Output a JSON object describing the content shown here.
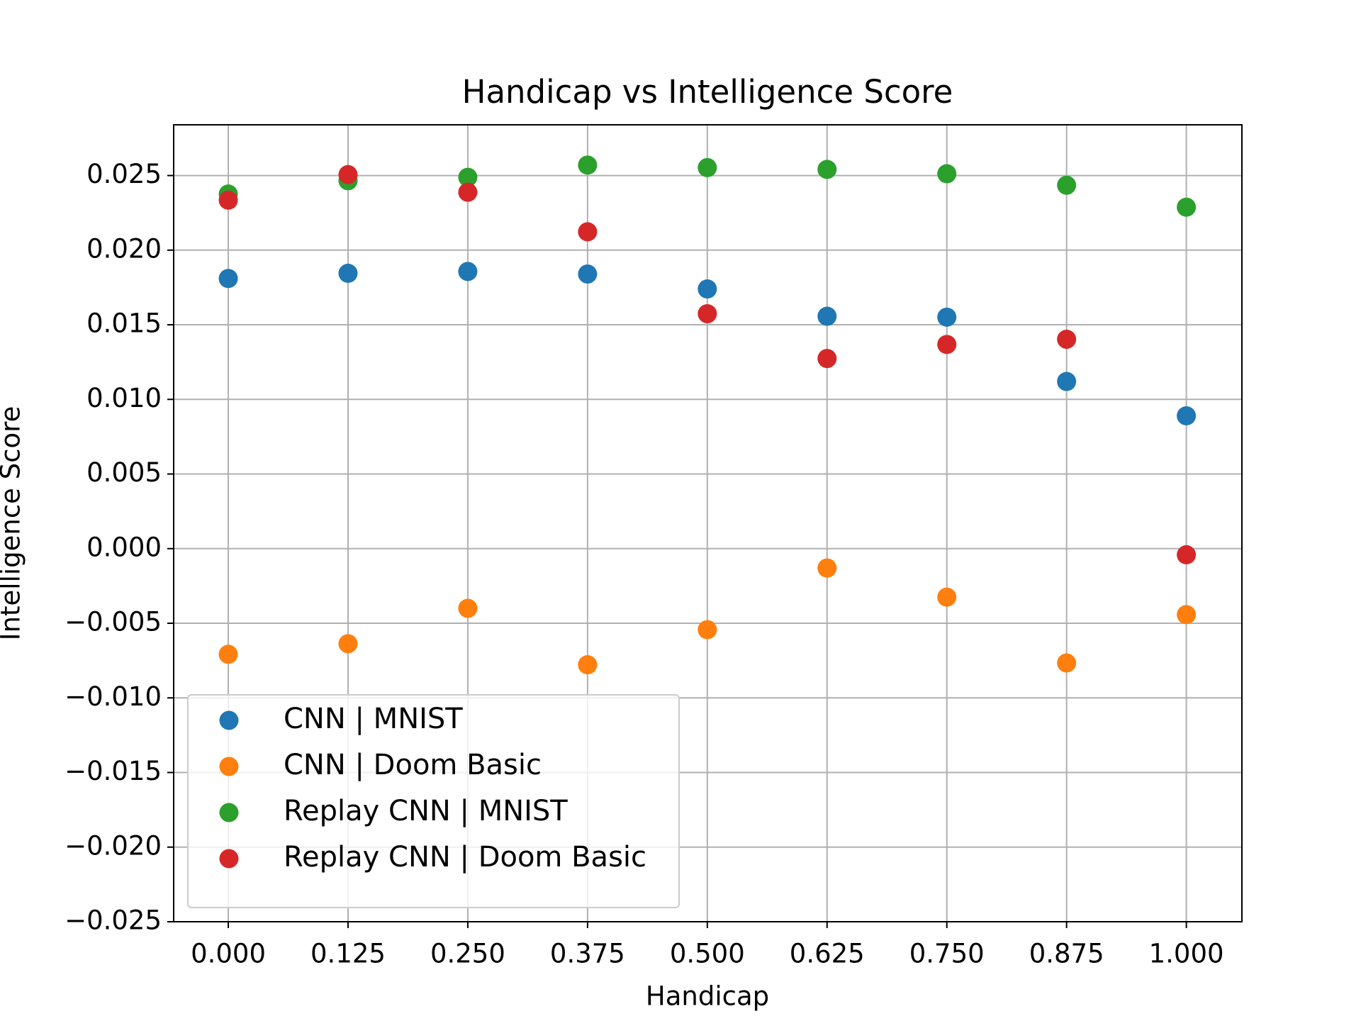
{
  "chart_data": {
    "type": "scatter",
    "title": "Handicap vs Intelligence Score",
    "xlabel": "Handicap",
    "ylabel": "Intelligence Score",
    "x": [
      0,
      0.125,
      0.25,
      0.375,
      0.5,
      0.625,
      0.75,
      0.875,
      1.0
    ],
    "series": [
      {
        "name": "CNN | MNIST",
        "color": "#1f77b4",
        "values": [
          0.0181,
          0.01845,
          0.01857,
          0.0184,
          0.0174,
          0.01557,
          0.01551,
          0.0112,
          0.0089
        ]
      },
      {
        "name": "CNN | Doom Basic",
        "color": "#ff7f0e",
        "values": [
          -0.00708,
          -0.00637,
          -0.004,
          -0.00778,
          -0.00543,
          -0.0013,
          -0.00325,
          -0.00766,
          -0.00442
        ]
      },
      {
        "name": "Replay CNN | MNIST",
        "color": "#2ca02c",
        "values": [
          0.02376,
          0.02465,
          0.02488,
          0.0257,
          0.02553,
          0.02541,
          0.02512,
          0.02435,
          0.02288
        ]
      },
      {
        "name": "Replay CNN | Doom Basic",
        "color": "#d62728",
        "values": [
          0.02335,
          0.02506,
          0.02388,
          0.02123,
          0.01574,
          0.01274,
          0.01368,
          0.01403,
          -0.00041
        ]
      }
    ],
    "xlim": [
      -0.057,
      1.058
    ],
    "xticks": [
      {
        "value": 0,
        "label": "0.000"
      },
      {
        "value": 0.125,
        "label": "0.125"
      },
      {
        "value": 0.25,
        "label": "0.250"
      },
      {
        "value": 0.375,
        "label": "0.375"
      },
      {
        "value": 0.5,
        "label": "0.500"
      },
      {
        "value": 0.625,
        "label": "0.625"
      },
      {
        "value": 0.75,
        "label": "0.750"
      },
      {
        "value": 0.875,
        "label": "0.875"
      },
      {
        "value": 1.0,
        "label": "1.000"
      }
    ],
    "ylim": [
      -0.025,
      0.0284
    ],
    "yticks": [
      {
        "value": -0.025,
        "label": "−0.025"
      },
      {
        "value": -0.02,
        "label": "−0.020"
      },
      {
        "value": -0.015,
        "label": "−0.015"
      },
      {
        "value": -0.01,
        "label": "−0.010"
      },
      {
        "value": -0.005,
        "label": "−0.005"
      },
      {
        "value": 0,
        "label": "0.000"
      },
      {
        "value": 0.005,
        "label": "0.005"
      },
      {
        "value": 0.01,
        "label": "0.010"
      },
      {
        "value": 0.015,
        "label": "0.015"
      },
      {
        "value": 0.02,
        "label": "0.020"
      },
      {
        "value": 0.025,
        "label": "0.025"
      }
    ],
    "grid": true,
    "legend": "lower left"
  }
}
